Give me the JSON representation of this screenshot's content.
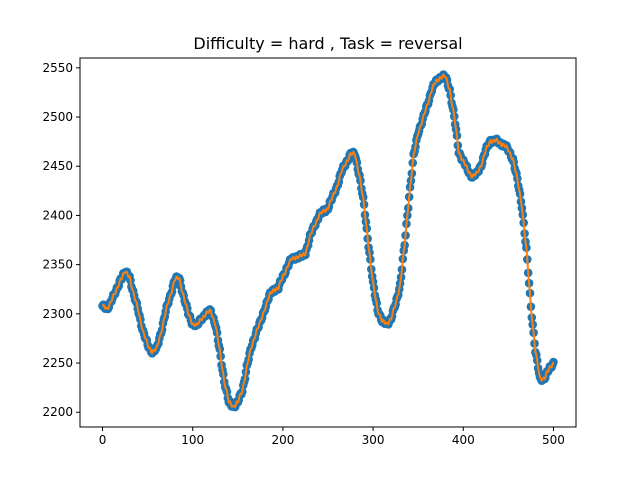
{
  "chart_data": {
    "type": "scatter",
    "title": "Difficulty = hard , Task = reversal",
    "xlabel": "",
    "ylabel": "",
    "xlim": [
      -25,
      525
    ],
    "ylim": [
      2185,
      2560
    ],
    "xticks": [
      0,
      100,
      200,
      300,
      400,
      500
    ],
    "yticks": [
      2200,
      2250,
      2300,
      2350,
      2400,
      2450,
      2500,
      2550
    ],
    "grid": false,
    "legend": "none",
    "colors": {
      "points": "#1f77b4",
      "line": "#ff7f0e"
    },
    "series": [
      {
        "style": "scatter points with overlaid line",
        "anchors": [
          [
            0,
            2308
          ],
          [
            5,
            2304
          ],
          [
            10,
            2315
          ],
          [
            15,
            2322
          ],
          [
            20,
            2336
          ],
          [
            25,
            2342
          ],
          [
            30,
            2338
          ],
          [
            35,
            2318
          ],
          [
            40,
            2302
          ],
          [
            45,
            2282
          ],
          [
            50,
            2268
          ],
          [
            55,
            2262
          ],
          [
            60,
            2264
          ],
          [
            65,
            2282
          ],
          [
            70,
            2302
          ],
          [
            75,
            2318
          ],
          [
            80,
            2335
          ],
          [
            85,
            2336
          ],
          [
            90,
            2318
          ],
          [
            95,
            2300
          ],
          [
            100,
            2290
          ],
          [
            105,
            2288
          ],
          [
            110,
            2296
          ],
          [
            115,
            2300
          ],
          [
            120,
            2303
          ],
          [
            125,
            2290
          ],
          [
            130,
            2262
          ],
          [
            135,
            2232
          ],
          [
            140,
            2210
          ],
          [
            145,
            2206
          ],
          [
            150,
            2210
          ],
          [
            155,
            2222
          ],
          [
            160,
            2246
          ],
          [
            165,
            2266
          ],
          [
            170,
            2281
          ],
          [
            175,
            2291
          ],
          [
            180,
            2306
          ],
          [
            185,
            2318
          ],
          [
            190,
            2325
          ],
          [
            195,
            2326
          ],
          [
            200,
            2338
          ],
          [
            205,
            2348
          ],
          [
            210,
            2356
          ],
          [
            215,
            2358
          ],
          [
            220,
            2358
          ],
          [
            225,
            2362
          ],
          [
            230,
            2378
          ],
          [
            235,
            2390
          ],
          [
            240,
            2400
          ],
          [
            245,
            2404
          ],
          [
            250,
            2408
          ],
          [
            255,
            2418
          ],
          [
            260,
            2430
          ],
          [
            265,
            2444
          ],
          [
            270,
            2454
          ],
          [
            275,
            2462
          ],
          [
            280,
            2462
          ],
          [
            285,
            2440
          ],
          [
            290,
            2410
          ],
          [
            295,
            2370
          ],
          [
            300,
            2330
          ],
          [
            305,
            2305
          ],
          [
            310,
            2292
          ],
          [
            315,
            2290
          ],
          [
            320,
            2295
          ],
          [
            325,
            2310
          ],
          [
            330,
            2330
          ],
          [
            335,
            2370
          ],
          [
            340,
            2420
          ],
          [
            345,
            2460
          ],
          [
            350,
            2485
          ],
          [
            355,
            2497
          ],
          [
            360,
            2512
          ],
          [
            365,
            2528
          ],
          [
            370,
            2536
          ],
          [
            375,
            2541
          ],
          [
            380,
            2541
          ],
          [
            385,
            2528
          ],
          [
            390,
            2500
          ],
          [
            395,
            2465
          ],
          [
            400,
            2455
          ],
          [
            405,
            2446
          ],
          [
            410,
            2440
          ],
          [
            415,
            2442
          ],
          [
            420,
            2452
          ],
          [
            425,
            2466
          ],
          [
            430,
            2476
          ],
          [
            435,
            2476
          ],
          [
            440,
            2474
          ],
          [
            445,
            2472
          ],
          [
            450,
            2466
          ],
          [
            455,
            2458
          ],
          [
            460,
            2436
          ],
          [
            465,
            2410
          ],
          [
            470,
            2365
          ],
          [
            475,
            2308
          ],
          [
            480,
            2262
          ],
          [
            485,
            2234
          ],
          [
            490,
            2235
          ],
          [
            495,
            2243
          ],
          [
            500,
            2251
          ]
        ]
      }
    ]
  }
}
